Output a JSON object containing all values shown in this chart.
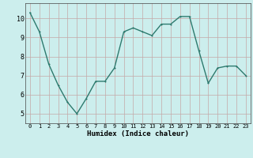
{
  "x": [
    0,
    1,
    2,
    3,
    4,
    5,
    6,
    7,
    8,
    9,
    10,
    11,
    12,
    13,
    14,
    15,
    16,
    17,
    18,
    19,
    20,
    21,
    22,
    23
  ],
  "y": [
    10.3,
    9.3,
    7.6,
    6.5,
    5.6,
    5.0,
    5.8,
    6.7,
    6.7,
    7.4,
    9.3,
    9.5,
    9.3,
    9.1,
    9.7,
    9.7,
    10.1,
    10.1,
    8.3,
    6.6,
    7.4,
    7.5,
    7.5,
    7.0
  ],
  "xlabel": "Humidex (Indice chaleur)",
  "line_color": "#2d7a6e",
  "marker_color": "#2d7a6e",
  "bg_color": "#cceeed",
  "grid_color": "#c4a8a8",
  "ylim": [
    4.5,
    10.8
  ],
  "xlim": [
    -0.5,
    23.5
  ],
  "yticks": [
    5,
    6,
    7,
    8,
    9,
    10
  ],
  "xticks": [
    0,
    1,
    2,
    3,
    4,
    5,
    6,
    7,
    8,
    9,
    10,
    11,
    12,
    13,
    14,
    15,
    16,
    17,
    18,
    19,
    20,
    21,
    22,
    23
  ],
  "xlabel_fontsize": 6.5,
  "tick_fontsize_x": 5.0,
  "tick_fontsize_y": 6.0,
  "linewidth": 1.0,
  "markersize": 2.0
}
